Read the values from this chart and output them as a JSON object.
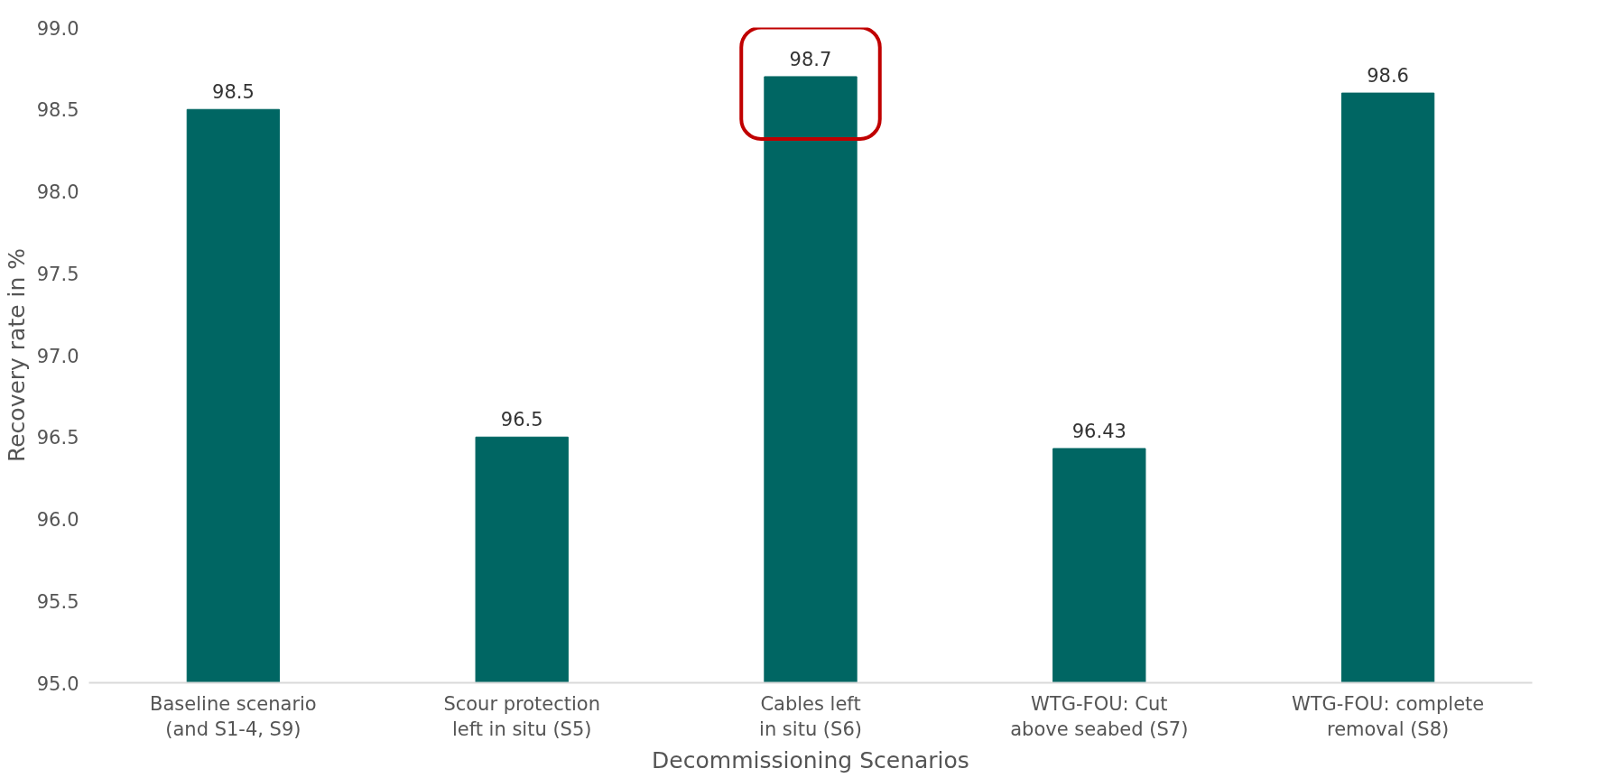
{
  "chart_data": {
    "type": "bar",
    "xlabel": "Decommissioning Scenarios",
    "ylabel": "Recovery rate in %",
    "categories": [
      "Baseline scenario\n(and S1-4, S9)",
      "Scour protection\nleft in situ (S5)",
      "Cables left\nin situ (S6)",
      "WTG-FOU: Cut\nabove seabed (S7)",
      "WTG-FOU: complete\nremoval (S8)"
    ],
    "values": [
      98.5,
      96.5,
      98.7,
      96.43,
      98.6
    ],
    "color": "#006663",
    "ylim": [
      95.0,
      99.0
    ],
    "yticks": [
      {
        "value": 95.0,
        "label": "95.0"
      },
      {
        "value": 95.5,
        "label": "95.5"
      },
      {
        "value": 96.0,
        "label": "96.0"
      },
      {
        "value": 96.5,
        "label": "96.5"
      },
      {
        "value": 97.0,
        "label": "97.0"
      },
      {
        "value": 97.5,
        "label": "97.5"
      },
      {
        "value": 98.0,
        "label": "98.0"
      },
      {
        "value": 98.5,
        "label": "98.5"
      },
      {
        "value": 99.0,
        "label": "99.0"
      }
    ],
    "data_labels": true,
    "grid": false
  }
}
